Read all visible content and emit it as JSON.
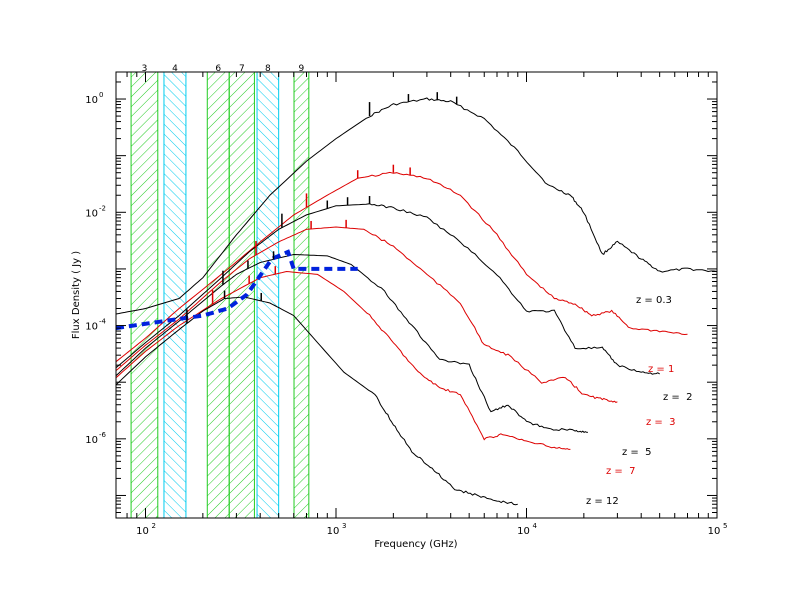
{
  "chart_data": {
    "type": "line",
    "xlabel": "Frequency (GHz)",
    "ylabel": "Flux Density ( Jy )",
    "x_scale": "log",
    "y_scale": "log",
    "xlim": [
      70,
      100000
    ],
    "ylim": [
      4e-08,
      3
    ],
    "x_ticks": [
      {
        "value": 100,
        "label": "10",
        "exp": "2"
      },
      {
        "value": 1000,
        "label": "10",
        "exp": "3"
      },
      {
        "value": 10000,
        "label": "10",
        "exp": "4"
      },
      {
        "value": 100000,
        "label": "10",
        "exp": "5"
      }
    ],
    "y_ticks": [
      {
        "value": 1e-06,
        "label": "10",
        "exp": "-6"
      },
      {
        "value": 0.0001,
        "label": "10",
        "exp": "-4"
      },
      {
        "value": 0.01,
        "label": "10",
        "exp": "-2"
      },
      {
        "value": 1,
        "label": "10",
        "exp": "0"
      }
    ],
    "bands": [
      {
        "label": "3",
        "range": [
          84,
          116
        ],
        "color": "#22cc22"
      },
      {
        "label": "4",
        "range": [
          125,
          163
        ],
        "color": "#00ccee"
      },
      {
        "label": "6",
        "range": [
          211,
          275
        ],
        "color": "#22cc22"
      },
      {
        "label": "7",
        "range": [
          275,
          373
        ],
        "color": "#22cc22"
      },
      {
        "label": "8",
        "range": [
          385,
          500
        ],
        "color": "#00ccee"
      },
      {
        "label": "9",
        "range": [
          602,
          720
        ],
        "color": "#22cc22"
      }
    ],
    "series": [
      {
        "name": "z = 0.3",
        "color": "#000000",
        "points": [
          [
            70,
            0.00016
          ],
          [
            100,
            0.0002
          ],
          [
            150,
            0.0003
          ],
          [
            200,
            0.0007
          ],
          [
            300,
            0.004
          ],
          [
            450,
            0.02
          ],
          [
            700,
            0.08
          ],
          [
            1000,
            0.2
          ],
          [
            1500,
            0.5
          ],
          [
            2000,
            0.8
          ],
          [
            3000,
            1.0
          ],
          [
            4000,
            0.9
          ],
          [
            6000,
            0.45
          ],
          [
            9000,
            0.12
          ],
          [
            13000,
            0.03
          ],
          [
            17000,
            0.02
          ],
          [
            20000,
            0.01
          ],
          [
            25000,
            0.0018
          ],
          [
            30000,
            0.003
          ],
          [
            40000,
            0.0015
          ],
          [
            50000,
            0.0009
          ],
          [
            70000,
            0.001
          ],
          [
            100000,
            0.0009
          ]
        ]
      },
      {
        "name": "z = 1",
        "color": "#dd0000",
        "points": [
          [
            70,
            2.3e-05
          ],
          [
            100,
            6e-05
          ],
          [
            150,
            0.0002
          ],
          [
            250,
            0.0008
          ],
          [
            400,
            0.003
          ],
          [
            600,
            0.009
          ],
          [
            900,
            0.02
          ],
          [
            1300,
            0.04
          ],
          [
            2000,
            0.05
          ],
          [
            3000,
            0.04
          ],
          [
            4500,
            0.02
          ],
          [
            7000,
            0.004
          ],
          [
            10000,
            0.0008
          ],
          [
            14000,
            0.0003
          ],
          [
            18000,
            0.00024
          ],
          [
            22000,
            0.00015
          ],
          [
            28000,
            0.00018
          ],
          [
            35000,
            9e-05
          ],
          [
            50000,
            8e-05
          ],
          [
            70000,
            7e-05
          ]
        ]
      },
      {
        "name": "z =  2",
        "color": "#000000",
        "points": [
          [
            70,
            1.8e-05
          ],
          [
            100,
            5e-05
          ],
          [
            150,
            0.00015
          ],
          [
            250,
            0.0007
          ],
          [
            350,
            0.002
          ],
          [
            500,
            0.005
          ],
          [
            700,
            0.009
          ],
          [
            1000,
            0.013
          ],
          [
            1500,
            0.014
          ],
          [
            2000,
            0.012
          ],
          [
            3000,
            0.008
          ],
          [
            4500,
            0.003
          ],
          [
            7000,
            0.0008
          ],
          [
            10000,
            0.00018
          ],
          [
            14000,
            0.00018
          ],
          [
            18000,
            4e-05
          ],
          [
            25000,
            4e-05
          ],
          [
            30000,
            2e-05
          ],
          [
            40000,
            1.5e-05
          ],
          [
            50000,
            1.4e-05
          ]
        ]
      },
      {
        "name": "z =  3",
        "color": "#dd0000",
        "points": [
          [
            70,
            1.6e-05
          ],
          [
            100,
            4.5e-05
          ],
          [
            150,
            0.00013
          ],
          [
            250,
            0.0006
          ],
          [
            350,
            0.0015
          ],
          [
            500,
            0.003
          ],
          [
            700,
            0.005
          ],
          [
            1000,
            0.0055
          ],
          [
            1400,
            0.005
          ],
          [
            2000,
            0.0025
          ],
          [
            3000,
            0.0008
          ],
          [
            4500,
            0.00025
          ],
          [
            6000,
            4.5e-05
          ],
          [
            8000,
            3e-05
          ],
          [
            12000,
            1e-05
          ],
          [
            16000,
            1.2e-05
          ],
          [
            20000,
            6e-06
          ],
          [
            25000,
            5e-06
          ],
          [
            30000,
            4.5e-06
          ]
        ]
      },
      {
        "name": "z =  5",
        "color": "#000000",
        "points": [
          [
            70,
            1.3e-05
          ],
          [
            100,
            4e-05
          ],
          [
            150,
            0.00012
          ],
          [
            250,
            0.0005
          ],
          [
            300,
            0.0008
          ],
          [
            400,
            0.0013
          ],
          [
            600,
            0.0018
          ],
          [
            900,
            0.0017
          ],
          [
            1200,
            0.0012
          ],
          [
            1800,
            0.0004
          ],
          [
            2500,
            0.0001
          ],
          [
            3500,
            2.5e-05
          ],
          [
            5000,
            2e-05
          ],
          [
            6500,
            3e-06
          ],
          [
            8000,
            4e-06
          ],
          [
            10000,
            2e-06
          ],
          [
            13000,
            1.5e-06
          ],
          [
            18000,
            1.4e-06
          ],
          [
            21000,
            1.3e-06
          ]
        ]
      },
      {
        "name": "z =  7",
        "color": "#dd0000",
        "points": [
          [
            70,
            1.2e-05
          ],
          [
            100,
            3.5e-05
          ],
          [
            150,
            0.0001
          ],
          [
            250,
            0.0003
          ],
          [
            400,
            0.0007
          ],
          [
            550,
            0.0009
          ],
          [
            800,
            0.0008
          ],
          [
            1100,
            0.0004
          ],
          [
            1500,
            0.00015
          ],
          [
            2000,
            5e-05
          ],
          [
            2700,
            1.5e-05
          ],
          [
            3500,
            8e-06
          ],
          [
            4500,
            6e-06
          ],
          [
            6000,
            1e-06
          ],
          [
            7500,
            1.2e-06
          ],
          [
            10000,
            9e-07
          ],
          [
            14000,
            7e-07
          ],
          [
            17000,
            6.5e-07
          ]
        ]
      },
      {
        "name": "z = 12",
        "color": "#000000",
        "points": [
          [
            70,
            9e-06
          ],
          [
            100,
            2.8e-05
          ],
          [
            150,
            8.5e-05
          ],
          [
            200,
            0.00018
          ],
          [
            260,
            0.0003
          ],
          [
            330,
            0.00032
          ],
          [
            450,
            0.00025
          ],
          [
            600,
            0.00015
          ],
          [
            800,
            5e-05
          ],
          [
            1100,
            1.5e-05
          ],
          [
            1600,
            6e-06
          ],
          [
            2000,
            1.8e-06
          ],
          [
            2500,
            6e-07
          ],
          [
            3200,
            3e-07
          ],
          [
            4200,
            1.3e-07
          ],
          [
            5500,
            1e-07
          ],
          [
            7000,
            8e-08
          ],
          [
            9000,
            7e-08
          ]
        ]
      },
      {
        "name": "",
        "color": "#0022dd",
        "dashed": true,
        "points": [
          [
            70,
            9e-05
          ],
          [
            125,
            0.00012
          ],
          [
            200,
            0.00015
          ],
          [
            270,
            0.0002
          ],
          [
            340,
            0.00035
          ],
          [
            460,
            0.0015
          ],
          [
            560,
            0.002
          ],
          [
            600,
            0.001
          ],
          [
            1300,
            0.001
          ]
        ]
      }
    ],
    "spikes": [
      {
        "series": 0,
        "x": [
          1500,
          2400,
          3400,
          4300
        ]
      },
      {
        "series": 1,
        "x": [
          700,
          1300,
          2000,
          2450
        ]
      },
      {
        "series": 2,
        "x": [
          520,
          900,
          1150,
          1500
        ]
      },
      {
        "series": 3,
        "x": [
          380,
          740,
          1130
        ]
      },
      {
        "series": 4,
        "x": [
          255,
          345,
          470
        ]
      },
      {
        "series": 5,
        "x": [
          225,
          350,
          480
        ]
      },
      {
        "series": 6,
        "x": [
          165,
          260,
          405
        ]
      }
    ]
  },
  "colors": {
    "axis": "#000000",
    "red": "#dd0000",
    "blue": "#0022dd",
    "green": "#22cc22",
    "cyan": "#00ccee"
  }
}
